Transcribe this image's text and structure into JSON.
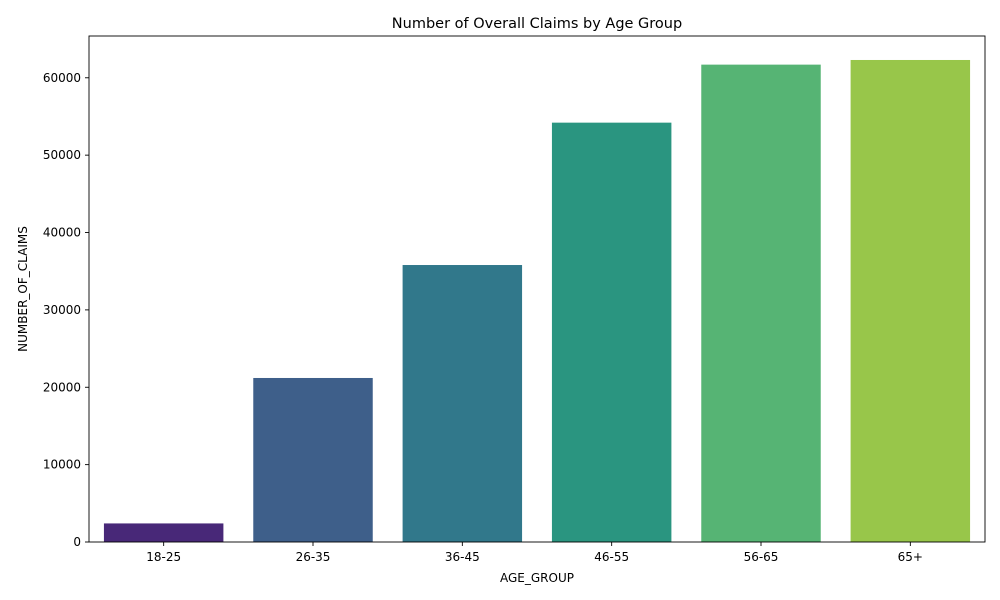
{
  "chart_data": {
    "type": "bar",
    "title": "Number of Overall Claims by Age Group",
    "xlabel": "AGE_GROUP",
    "ylabel": "NUMBER_OF_CLAIMS",
    "categories": [
      "18-25",
      "26-35",
      "36-45",
      "46-55",
      "56-65",
      "65+"
    ],
    "values": [
      2400,
      21200,
      35800,
      54200,
      61700,
      62300
    ],
    "colors": [
      "#482878",
      "#3e5f8a",
      "#31788b",
      "#2a9580",
      "#56b474",
      "#98c64a"
    ],
    "ylim": [
      0,
      65400
    ],
    "yticks": [
      0,
      10000,
      20000,
      30000,
      40000,
      50000,
      60000
    ],
    "ytick_labels": [
      "0",
      "10000",
      "20000",
      "30000",
      "40000",
      "50000",
      "60000"
    ],
    "grid": false,
    "legend": "none"
  }
}
